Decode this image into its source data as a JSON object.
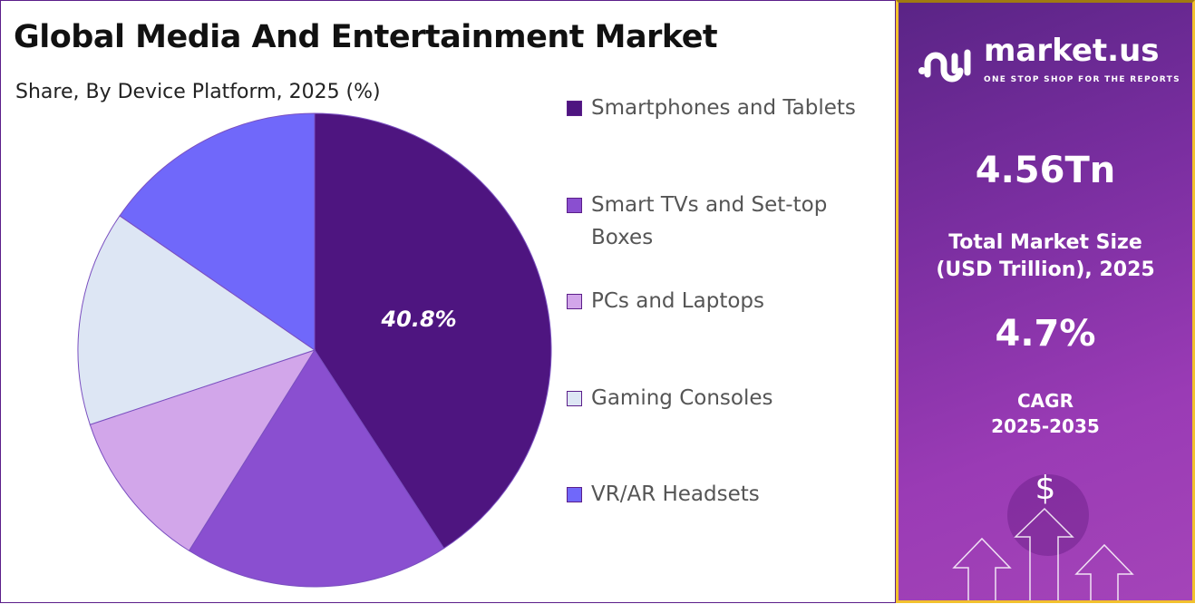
{
  "title": "Global Media And Entertainment Market",
  "subtitle": "Share, By Device Platform, 2025 (%)",
  "chart_data": {
    "type": "pie",
    "title": "Global Media And Entertainment Market",
    "subtitle": "Share, By Device Platform, 2025 (%)",
    "categories": [
      "Smartphones and Tablets",
      "Smart TVs and Set-top Boxes",
      "PCs and Laptops",
      "Gaming Consoles",
      "VR/AR Headsets"
    ],
    "values": [
      40.8,
      18.1,
      11.0,
      14.7,
      15.4
    ],
    "colors": [
      "#4e1580",
      "#8a4fd0",
      "#d2a6ea",
      "#dde6f4",
      "#7068fa"
    ],
    "data_labels": [
      "40.8%",
      "",
      "",
      "",
      ""
    ],
    "legend_position": "right"
  },
  "legend": [
    "Smartphones and Tablets",
    "Smart TVs and Set-top Boxes",
    "PCs and Laptops",
    "Gaming Consoles",
    "VR/AR Headsets"
  ],
  "panel": {
    "brand": "market.us",
    "tagline": "ONE STOP SHOP FOR THE REPORTS",
    "market_size": "4.56Tn",
    "market_size_label_1": "Total Market Size",
    "market_size_label_2": "(USD Trillion), 2025",
    "cagr": "4.7%",
    "cagr_label_1": "CAGR",
    "cagr_label_2": "2025-2035",
    "dollar": "$"
  }
}
